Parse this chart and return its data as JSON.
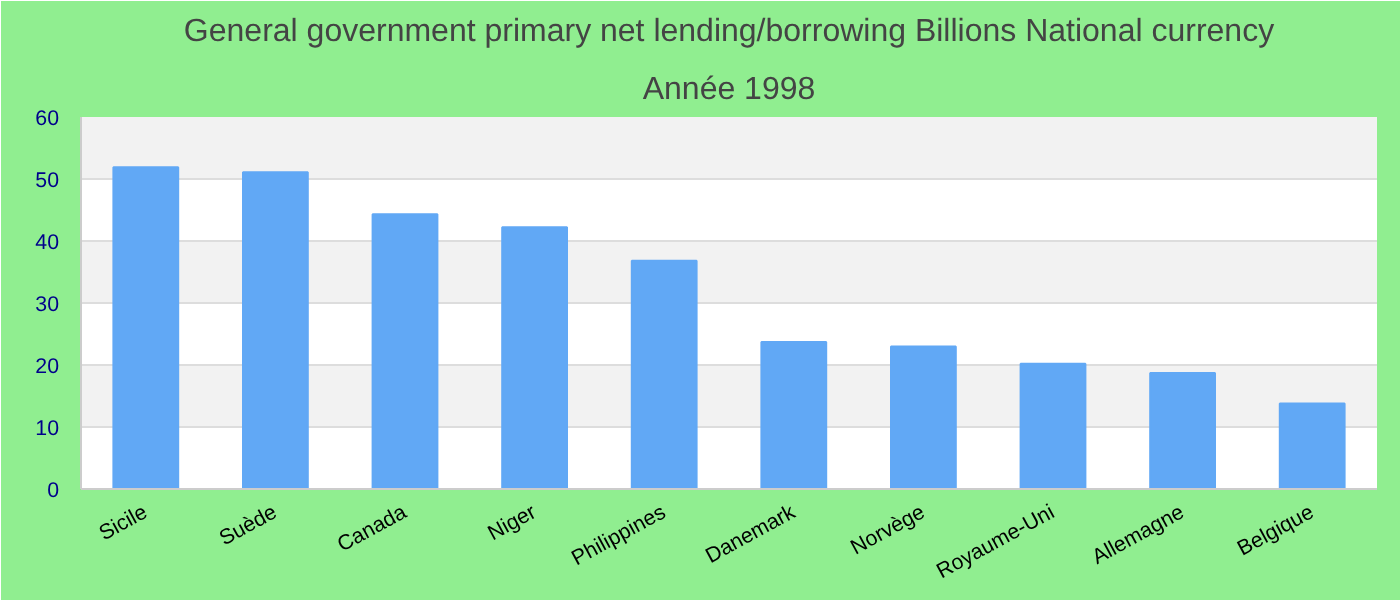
{
  "chart_data": {
    "type": "bar",
    "title": "General government primary net lending/borrowing Billions National currency",
    "subtitle": "Année 1998",
    "categories": [
      "Sicile",
      "Suède",
      "Canada",
      "Niger",
      "Philippines",
      "Danemark",
      "Norvège",
      "Royaume-Uni",
      "Allemagne",
      "Belgique"
    ],
    "values": [
      51.9,
      51.1,
      44.3,
      42.2,
      36.8,
      23.7,
      23.0,
      20.2,
      18.7,
      13.8
    ],
    "color": "#61a8f5",
    "ylim": [
      0,
      60
    ],
    "yticks": [
      0,
      10,
      20,
      30,
      40,
      50,
      60
    ],
    "grid": "y"
  }
}
